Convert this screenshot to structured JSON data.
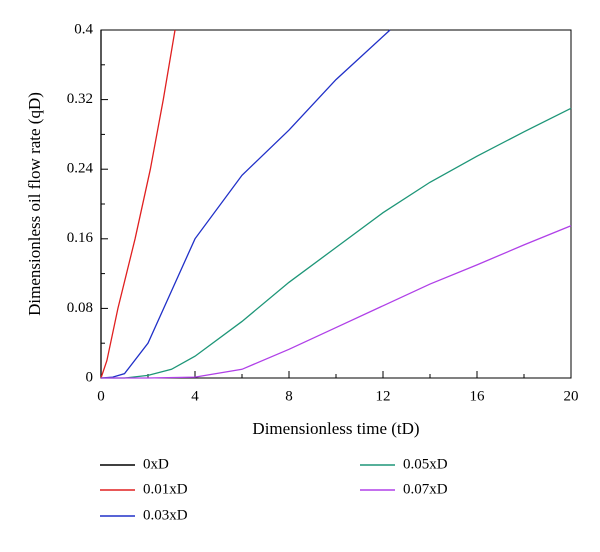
{
  "chart_data": {
    "type": "line",
    "xlabel": "Dimensionless time (tD)",
    "ylabel": "Dimensionless oil flow rate (qD)",
    "xlim": [
      0,
      20
    ],
    "ylim": [
      0,
      0.4
    ],
    "xticks": [
      0,
      4,
      8,
      12,
      16,
      20
    ],
    "yticks": [
      0,
      0.08,
      0.16,
      0.24,
      0.32,
      0.4
    ],
    "series": [
      {
        "name": "0xD",
        "color": "#000000",
        "x": [
          0,
          0
        ],
        "values": [
          0,
          0.4
        ]
      },
      {
        "name": "0.01xD",
        "color": "#e02020",
        "x": [
          0,
          0.25,
          0.72,
          1.45,
          2.1,
          2.65,
          3.15
        ],
        "values": [
          0,
          0.02,
          0.08,
          0.16,
          0.24,
          0.32,
          0.4
        ]
      },
      {
        "name": "0.03xD",
        "color": "#2030c8",
        "x": [
          0,
          0.5,
          1,
          2,
          3,
          4,
          6,
          8,
          10,
          12.3
        ],
        "values": [
          0,
          0.001,
          0.005,
          0.04,
          0.1,
          0.16,
          0.233,
          0.285,
          0.343,
          0.4
        ]
      },
      {
        "name": "0.05xD",
        "color": "#1e9678",
        "x": [
          0,
          1,
          2,
          3,
          4,
          6,
          8,
          10,
          12,
          14,
          16,
          18,
          20
        ],
        "values": [
          0,
          0,
          0.003,
          0.01,
          0.025,
          0.065,
          0.11,
          0.15,
          0.19,
          0.225,
          0.255,
          0.283,
          0.31
        ]
      },
      {
        "name": "0.07xD",
        "color": "#b040e8",
        "x": [
          0,
          2,
          4,
          6,
          8,
          10,
          12,
          14,
          16,
          18,
          20
        ],
        "values": [
          0,
          0,
          0.001,
          0.01,
          0.033,
          0.058,
          0.083,
          0.108,
          0.13,
          0.153,
          0.175
        ]
      }
    ],
    "grid": false
  }
}
